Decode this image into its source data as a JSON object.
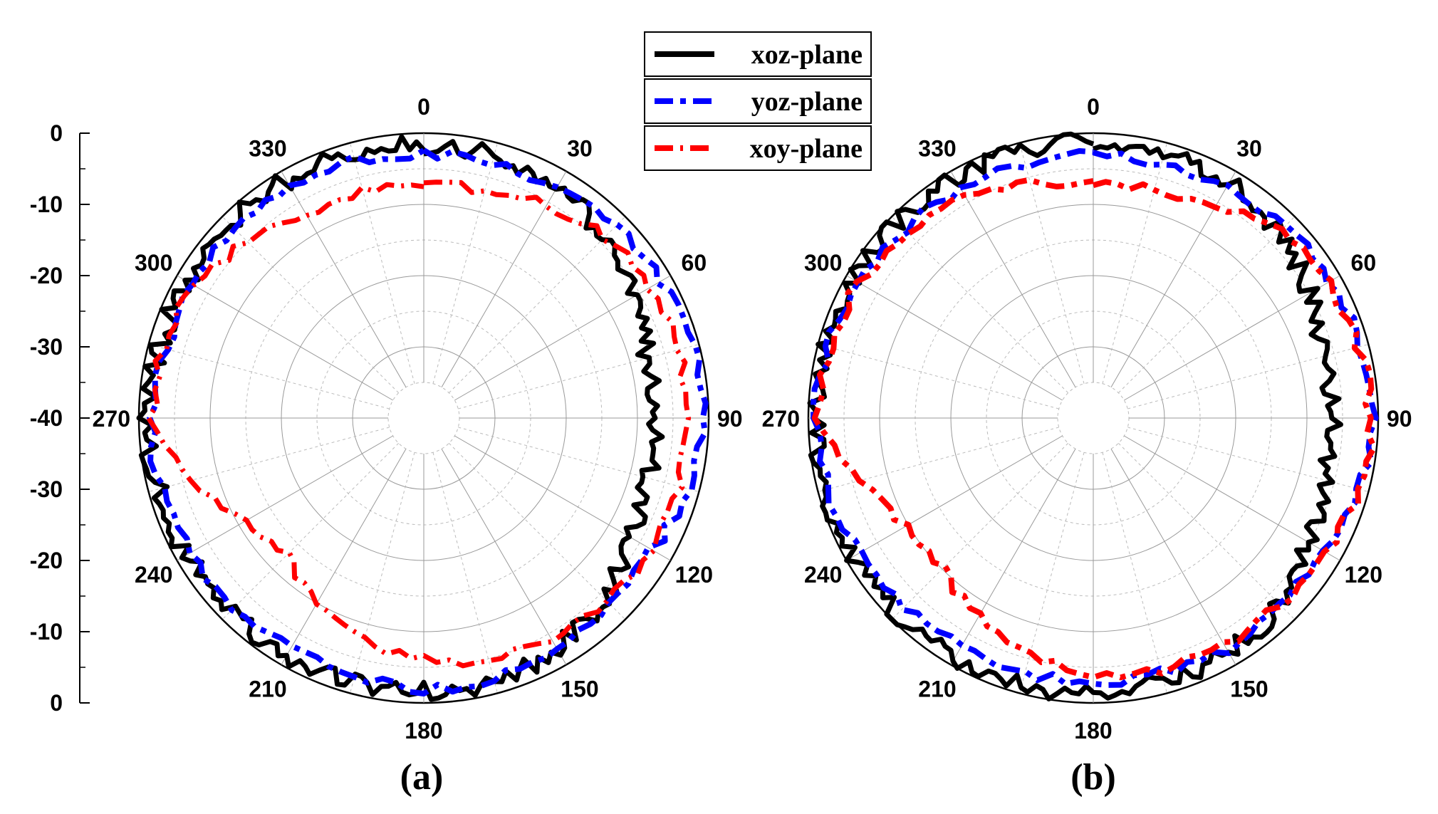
{
  "chart_data": [
    {
      "type": "polar-line",
      "panel": "(a)",
      "radial_axis": {
        "min": -40,
        "max": 0,
        "ticks": [
          0,
          -10,
          -20,
          -30,
          -40,
          -30,
          -20,
          -10,
          0
        ]
      },
      "angle_ticks": [
        "0",
        "30",
        "60",
        "90",
        "120",
        "150",
        "180",
        "210",
        "240",
        "270",
        "300",
        "330"
      ],
      "series": [
        {
          "name": "xoz-plane",
          "color": "#000000",
          "style": "solid",
          "angles": [
            0,
            15,
            30,
            45,
            60,
            75,
            90,
            105,
            120,
            135,
            150,
            165,
            180,
            195,
            210,
            225,
            240,
            255,
            270,
            285,
            300,
            315,
            330,
            345,
            360
          ],
          "values": [
            -1.5,
            -2,
            -2.5,
            -4,
            -6,
            -7.5,
            -7.5,
            -7.5,
            -6.5,
            -4.5,
            -2.5,
            -1.5,
            -1.5,
            -1.5,
            -1.5,
            -1.5,
            -1.5,
            -1.5,
            -1,
            -1.5,
            -1.5,
            -1.5,
            -1.5,
            -1.5,
            -1.5
          ]
        },
        {
          "name": "yoz-plane",
          "color": "#0000ff",
          "style": "dash-dot",
          "angles": [
            0,
            15,
            30,
            45,
            60,
            75,
            90,
            105,
            120,
            135,
            150,
            165,
            180,
            195,
            210,
            225,
            240,
            255,
            270,
            285,
            300,
            315,
            330,
            345,
            360
          ],
          "values": [
            -3,
            -3,
            -3,
            -2,
            -1.5,
            -1,
            -1,
            -1.5,
            -3,
            -3,
            -2.5,
            -2,
            -2,
            -2.5,
            -3,
            -2.5,
            -2,
            -2,
            -1.5,
            -2.5,
            -2.5,
            -2.5,
            -2.5,
            -2.5,
            -3
          ]
        },
        {
          "name": "xoy-plane",
          "color": "#ff0000",
          "style": "dash-dot-thin",
          "angles": [
            0,
            15,
            30,
            45,
            60,
            75,
            90,
            105,
            120,
            135,
            150,
            165,
            180,
            195,
            210,
            225,
            240,
            255,
            270,
            285,
            300,
            315,
            330,
            345,
            360
          ],
          "values": [
            -7,
            -7,
            -5.5,
            -4,
            -3.5,
            -3,
            -3,
            -3,
            -3,
            -3.5,
            -4,
            -5,
            -6,
            -7.5,
            -10,
            -13,
            -11,
            -6,
            -2,
            -2,
            -3,
            -5,
            -7,
            -7,
            -7
          ]
        }
      ]
    },
    {
      "type": "polar-line",
      "panel": "(b)",
      "radial_axis": {
        "min": -40,
        "max": 0
      },
      "angle_ticks": [
        "0",
        "30",
        "60",
        "90",
        "120",
        "150",
        "180",
        "210",
        "240",
        "270",
        "300",
        "330"
      ],
      "series": [
        {
          "name": "xoz-plane",
          "color": "#000000",
          "style": "solid",
          "angles": [
            0,
            15,
            30,
            45,
            60,
            75,
            90,
            105,
            120,
            135,
            150,
            165,
            180,
            195,
            210,
            225,
            240,
            255,
            270,
            285,
            300,
            315,
            330,
            345,
            360
          ],
          "values": [
            -1,
            -1.5,
            -2,
            -3,
            -5,
            -6.5,
            -6.5,
            -6.5,
            -5,
            -3,
            -2,
            -1.5,
            -1.5,
            -1,
            -1,
            -1,
            -1,
            -1,
            -1,
            -1,
            -1,
            -1,
            -1,
            -1,
            -1
          ]
        },
        {
          "name": "yoz-plane",
          "color": "#0000ff",
          "style": "dash-dot",
          "angles": [
            0,
            15,
            30,
            45,
            60,
            75,
            90,
            105,
            120,
            135,
            150,
            165,
            180,
            195,
            210,
            225,
            240,
            255,
            270,
            285,
            300,
            315,
            330,
            345,
            360
          ],
          "values": [
            -3,
            -3,
            -2.5,
            -2,
            -1.5,
            -1,
            -0.5,
            -1.5,
            -2.5,
            -3,
            -2.5,
            -3,
            -3,
            -3,
            -3,
            -2.5,
            -2,
            -1.5,
            -1,
            -1.5,
            -2,
            -2.5,
            -3,
            -3,
            -3
          ]
        },
        {
          "name": "xoy-plane",
          "color": "#ff0000",
          "style": "dash-dot",
          "angles": [
            0,
            15,
            30,
            45,
            60,
            75,
            90,
            105,
            120,
            135,
            150,
            165,
            180,
            195,
            210,
            225,
            240,
            255,
            270,
            285,
            300,
            315,
            330,
            345,
            360
          ],
          "values": [
            -7,
            -7,
            -5.5,
            -3,
            -2,
            -1.5,
            -1,
            -1,
            -2.5,
            -3,
            -3,
            -3.5,
            -4,
            -6,
            -8,
            -10,
            -10,
            -6,
            -1,
            -2,
            -2,
            -3,
            -4,
            -6,
            -7
          ]
        }
      ]
    }
  ],
  "legend": {
    "entries": [
      {
        "label": "xoz-plane",
        "color": "#000000"
      },
      {
        "label": "yoz-plane",
        "color": "#0000ff"
      },
      {
        "label": "xoy-plane",
        "color": "#ff0000"
      }
    ]
  },
  "radial_scale_labels": [
    "0",
    "-10",
    "-20",
    "-30",
    "-40",
    "-30",
    "-20",
    "-10",
    "0"
  ],
  "captions": {
    "a": "(a)",
    "b": "(b)"
  }
}
